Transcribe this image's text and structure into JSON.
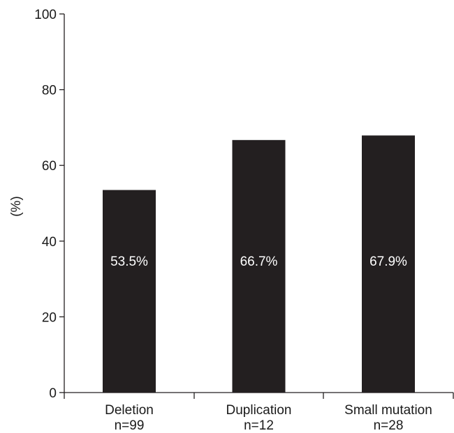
{
  "chart_data": {
    "type": "bar",
    "title": "",
    "xlabel": "",
    "ylabel": "(%)",
    "ylim": [
      0,
      100
    ],
    "yticks": [
      0,
      20,
      40,
      60,
      80,
      100
    ],
    "grid": false,
    "categories": [
      {
        "name": "Deletion",
        "count": "n=99"
      },
      {
        "name": "Duplication",
        "count": "n=12"
      },
      {
        "name": "Small mutation",
        "count": "n=28"
      }
    ],
    "values": [
      53.5,
      66.7,
      67.9
    ],
    "value_labels": [
      "53.5%",
      "66.7%",
      "67.9%"
    ],
    "colors": {
      "bar": "#231f20",
      "axis": "#231f20",
      "bar_label": "#ffffff"
    }
  }
}
